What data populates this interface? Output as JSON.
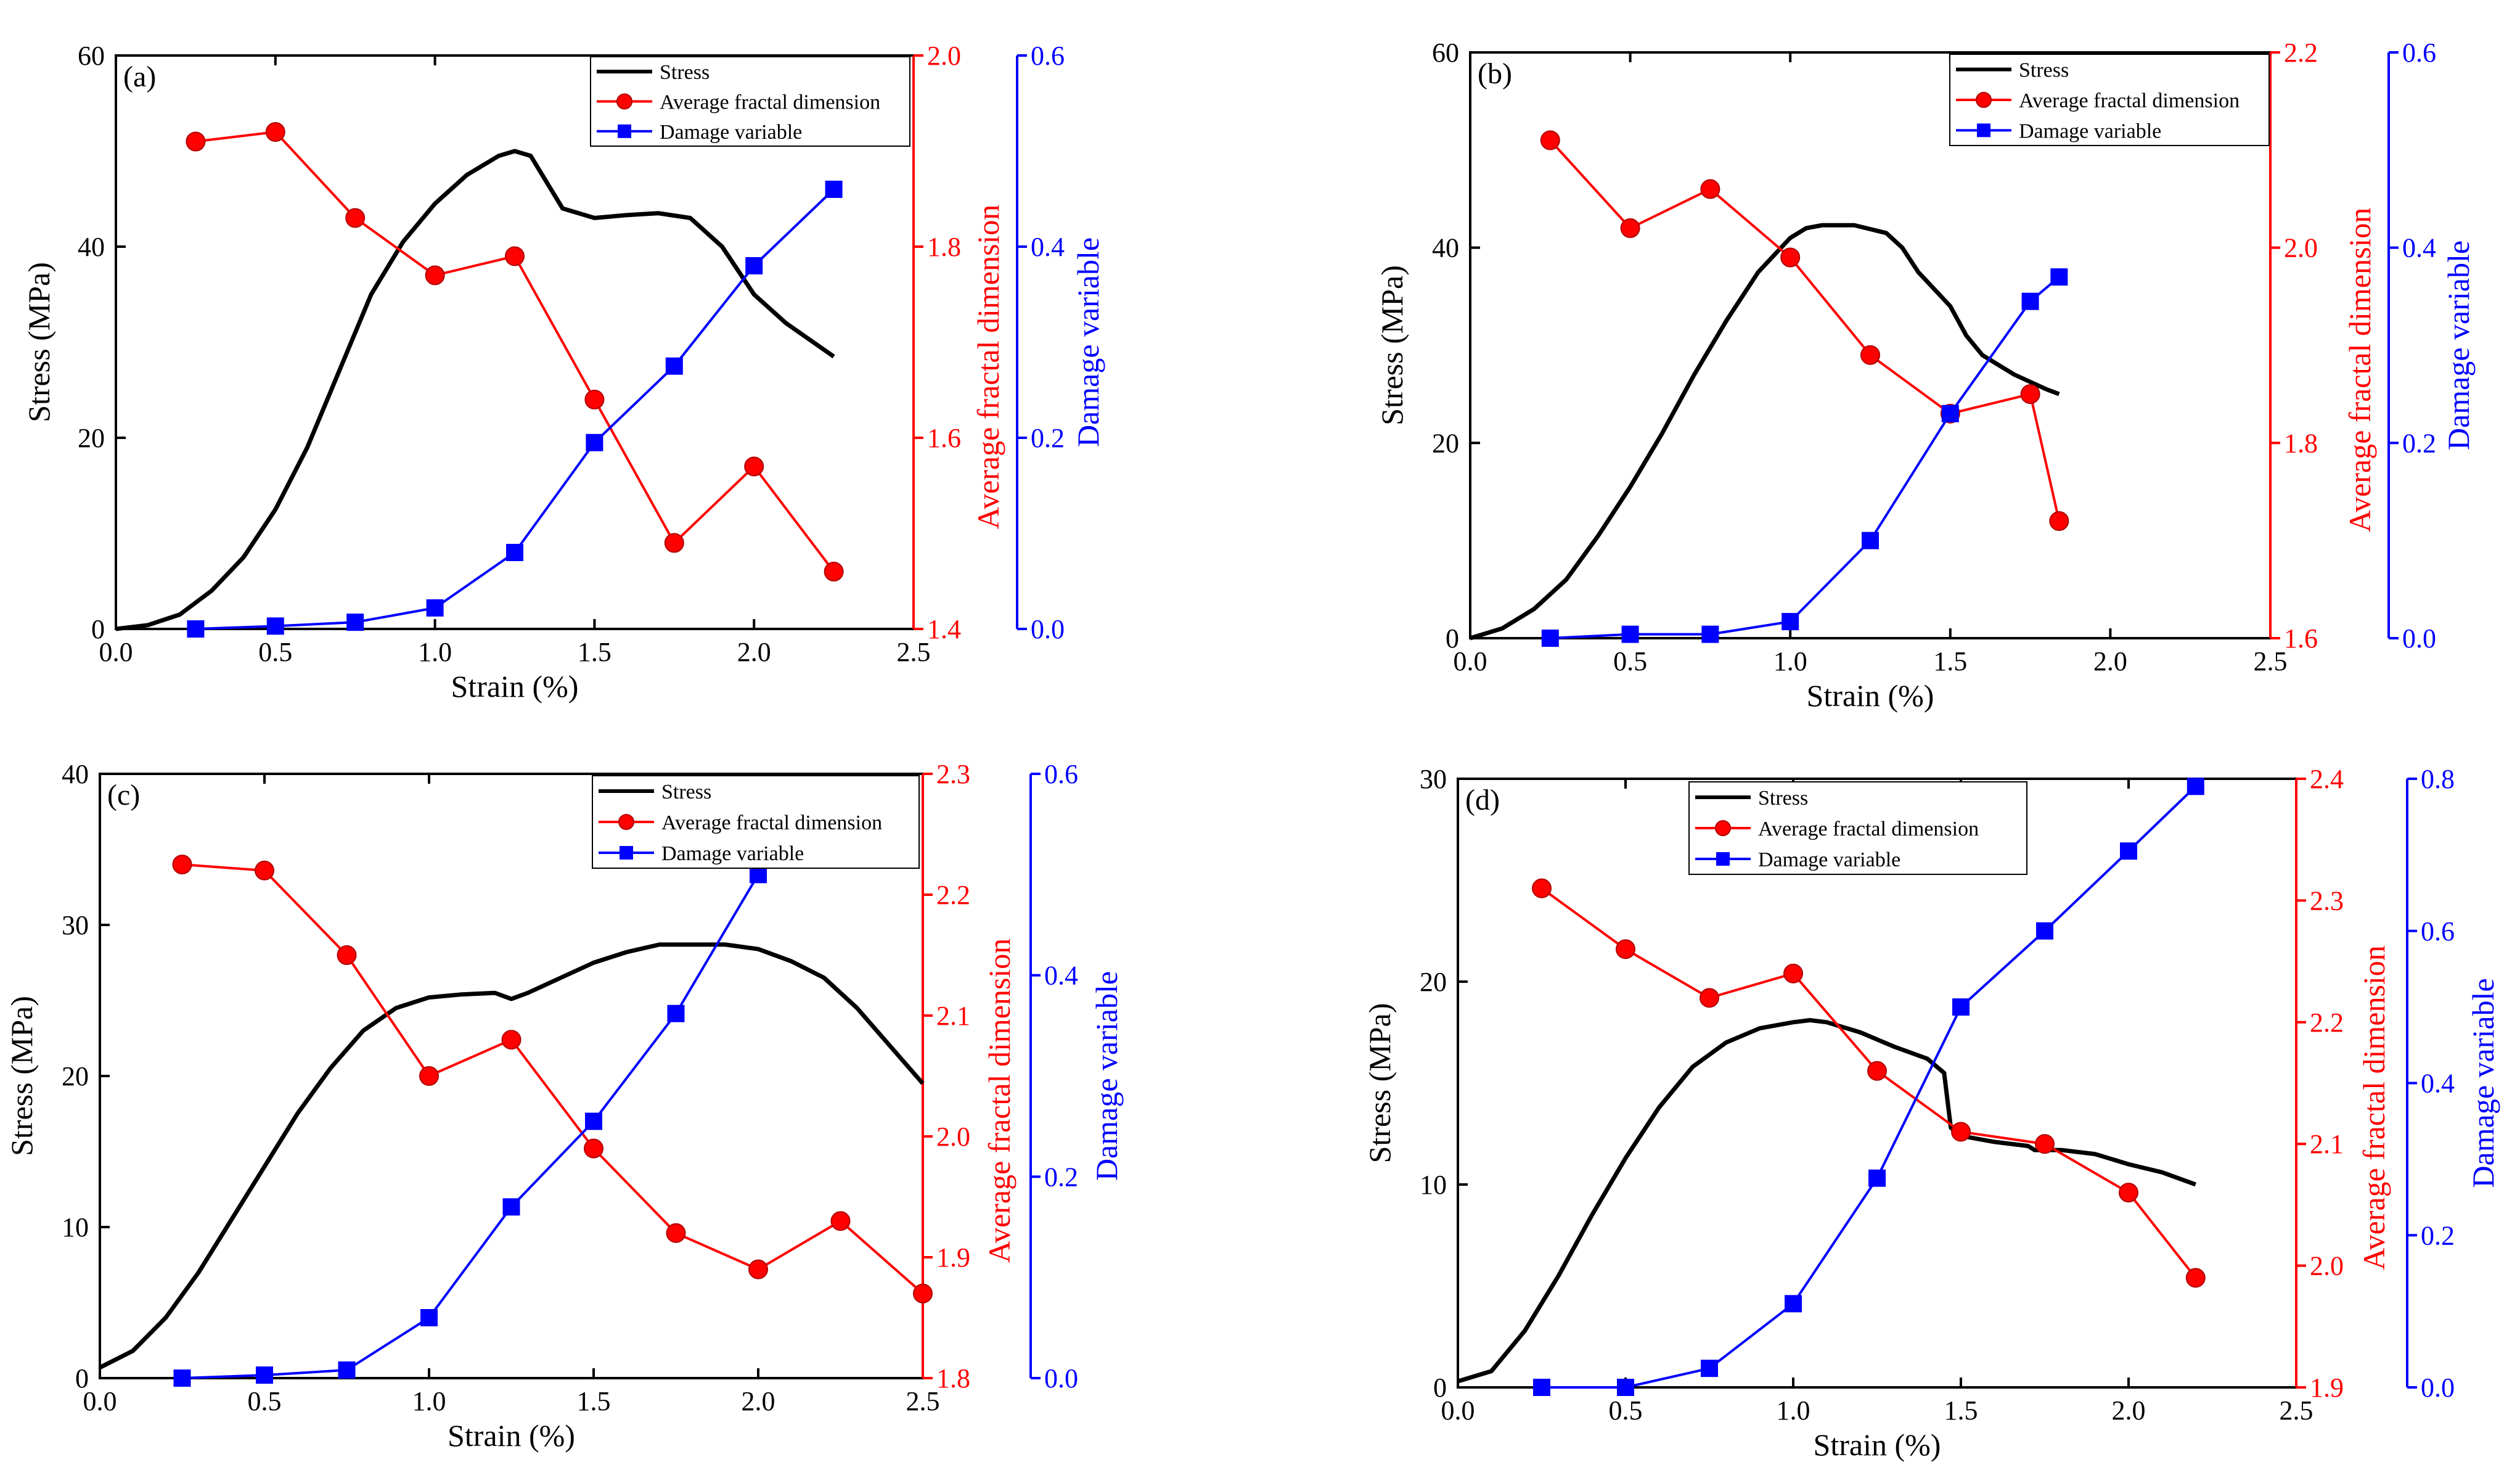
{
  "colors": {
    "stress": "#000000",
    "fractal": "#ff0000",
    "damage": "#0000ff",
    "marker_fractal_fill": "#ff0000",
    "marker_damage_fill": "#0000ff"
  },
  "legend_labels": {
    "stress": "Stress",
    "fractal": "Average fractal dimension",
    "damage": "Damage variable"
  },
  "axis_labels": {
    "x": "Strain (%)",
    "y_left": "Stress (MPa)",
    "y_mid": "Average fractal dimension",
    "y_right": "Damage variable"
  },
  "chart_data": [
    {
      "type": "line",
      "panel": "(a)",
      "legend_position": "top-right",
      "xlabel": "Strain (%)",
      "xlim": [
        0,
        2.5
      ],
      "xticks": [
        0,
        0.5,
        1,
        1.5,
        2,
        2.5
      ],
      "xtick_labels": [
        "0.0",
        "0.5",
        "1.0",
        "1.5",
        "2.0",
        "2.5"
      ],
      "stress": {
        "ylabel": "Stress (MPa)",
        "ylim": [
          0,
          60
        ],
        "yticks": [
          0,
          20,
          40,
          60
        ],
        "ytick_labels": [
          "0",
          "20",
          "40",
          "60"
        ],
        "x": [
          0,
          0.1,
          0.2,
          0.3,
          0.4,
          0.5,
          0.6,
          0.7,
          0.8,
          0.9,
          1.0,
          1.1,
          1.2,
          1.25,
          1.3,
          1.4,
          1.5,
          1.6,
          1.7,
          1.8,
          1.9,
          2.0,
          2.1,
          2.25
        ],
        "y": [
          0,
          0.4,
          1.5,
          4,
          7.5,
          12.5,
          19,
          27,
          35,
          40.5,
          44.5,
          47.5,
          49.5,
          50,
          49.5,
          44,
          43,
          43.3,
          43.5,
          43,
          40,
          35,
          32,
          28.5
        ]
      },
      "fractal": {
        "ylabel": "Average fractal dimension",
        "ylim": [
          1.4,
          2.0
        ],
        "yticks": [
          1.4,
          1.6,
          1.8,
          2.0
        ],
        "ytick_labels": [
          "1.4",
          "1.6",
          "1.8",
          "2.0"
        ],
        "x": [
          0.25,
          0.5,
          0.75,
          1.0,
          1.25,
          1.5,
          1.75,
          2.0,
          2.25
        ],
        "y": [
          1.91,
          1.92,
          1.83,
          1.77,
          1.79,
          1.64,
          1.49,
          1.57,
          1.46
        ]
      },
      "damage": {
        "ylabel": "Damage variable",
        "ylim": [
          0,
          0.6
        ],
        "yticks": [
          0,
          0.2,
          0.4,
          0.6
        ],
        "ytick_labels": [
          "0.0",
          "0.2",
          "0.4",
          "0.6"
        ],
        "x": [
          0.25,
          0.5,
          0.75,
          1.0,
          1.25,
          1.5,
          1.75,
          2.0,
          2.25
        ],
        "y": [
          0.0,
          0.003,
          0.007,
          0.022,
          0.08,
          0.195,
          0.275,
          0.38,
          0.46
        ]
      }
    },
    {
      "type": "line",
      "panel": "(b)",
      "legend_position": "top-right",
      "xlabel": "Strain (%)",
      "xlim": [
        0,
        2.5
      ],
      "xticks": [
        0,
        0.5,
        1,
        1.5,
        2,
        2.5
      ],
      "xtick_labels": [
        "0.0",
        "0.5",
        "1.0",
        "1.5",
        "2.0",
        "2.5"
      ],
      "stress": {
        "ylabel": "Stress (MPa)",
        "ylim": [
          0,
          60
        ],
        "yticks": [
          0,
          20,
          40,
          60
        ],
        "ytick_labels": [
          "0",
          "20",
          "40",
          "60"
        ],
        "x": [
          0,
          0.1,
          0.2,
          0.3,
          0.4,
          0.5,
          0.6,
          0.7,
          0.8,
          0.9,
          1.0,
          1.05,
          1.1,
          1.2,
          1.3,
          1.35,
          1.4,
          1.5,
          1.55,
          1.6,
          1.7,
          1.8,
          1.84
        ],
        "y": [
          0,
          1,
          3,
          6,
          10.5,
          15.5,
          21,
          27,
          32.5,
          37.5,
          41,
          42,
          42.3,
          42.3,
          41.5,
          40,
          37.5,
          34,
          31,
          29,
          27,
          25.5,
          25
        ]
      },
      "fractal": {
        "ylabel": "Average fractal dimension",
        "ylim": [
          1.6,
          2.2
        ],
        "yticks": [
          1.6,
          1.8,
          2.0,
          2.2
        ],
        "ytick_labels": [
          "1.6",
          "1.8",
          "2.0",
          "2.2"
        ],
        "x": [
          0.25,
          0.5,
          0.75,
          1.0,
          1.25,
          1.5,
          1.75,
          1.84
        ],
        "y": [
          2.11,
          2.02,
          2.06,
          1.99,
          1.89,
          1.83,
          1.85,
          1.72
        ]
      },
      "damage": {
        "ylabel": "Damage variable",
        "ylim": [
          0,
          0.6
        ],
        "yticks": [
          0,
          0.2,
          0.4,
          0.6
        ],
        "ytick_labels": [
          "0.0",
          "0.2",
          "0.4",
          "0.6"
        ],
        "x": [
          0.25,
          0.5,
          0.75,
          1.0,
          1.25,
          1.5,
          1.75,
          1.84
        ],
        "y": [
          0.0,
          0.004,
          0.004,
          0.017,
          0.1,
          0.23,
          0.345,
          0.37
        ]
      }
    },
    {
      "type": "line",
      "panel": "(c)",
      "legend_position": "top-right",
      "xlabel": "Strain (%)",
      "xlim": [
        0,
        2.5
      ],
      "xticks": [
        0,
        0.5,
        1,
        1.5,
        2,
        2.5
      ],
      "xtick_labels": [
        "0.0",
        "0.5",
        "1.0",
        "1.5",
        "2.0",
        "2.5"
      ],
      "stress": {
        "ylabel": "Stress (MPa)",
        "ylim": [
          0,
          40
        ],
        "yticks": [
          0,
          10,
          20,
          30,
          40
        ],
        "ytick_labels": [
          "0",
          "10",
          "20",
          "30",
          "40"
        ],
        "x": [
          0,
          0.1,
          0.2,
          0.3,
          0.4,
          0.5,
          0.6,
          0.7,
          0.8,
          0.9,
          1.0,
          1.1,
          1.2,
          1.25,
          1.3,
          1.4,
          1.5,
          1.6,
          1.7,
          1.8,
          1.9,
          2.0,
          2.1,
          2.2,
          2.3,
          2.4,
          2.5
        ],
        "y": [
          0.7,
          1.8,
          4,
          7,
          10.5,
          14,
          17.5,
          20.5,
          23,
          24.5,
          25.2,
          25.4,
          25.5,
          25.1,
          25.5,
          26.5,
          27.5,
          28.2,
          28.7,
          28.7,
          28.7,
          28.4,
          27.6,
          26.5,
          24.5,
          22,
          19.5
        ]
      },
      "fractal": {
        "ylabel": "Average fractal dimension",
        "ylim": [
          1.8,
          2.3
        ],
        "yticks": [
          1.8,
          1.9,
          2.0,
          2.1,
          2.2,
          2.3
        ],
        "ytick_labels": [
          "1.8",
          "1.9",
          "2.0",
          "2.1",
          "2.2",
          "2.3"
        ],
        "x": [
          0.25,
          0.5,
          0.75,
          1.0,
          1.25,
          1.5,
          1.75,
          2.0,
          2.25,
          2.5
        ],
        "y": [
          2.225,
          2.22,
          2.15,
          2.05,
          2.08,
          1.99,
          1.92,
          1.89,
          1.93,
          1.87
        ]
      },
      "damage": {
        "ylabel": "Damage variable",
        "ylim": [
          0,
          0.6
        ],
        "yticks": [
          0,
          0.2,
          0.4,
          0.6
        ],
        "ytick_labels": [
          "0.0",
          "0.2",
          "0.4",
          "0.6"
        ],
        "x": [
          0.25,
          0.5,
          0.75,
          1.0,
          1.25,
          1.5,
          1.75,
          2.0
        ],
        "y": [
          0.0,
          0.003,
          0.008,
          0.06,
          0.17,
          0.255,
          0.362,
          0.5
        ]
      }
    },
    {
      "type": "line",
      "panel": "(d)",
      "legend_position": "top-left",
      "xlabel": "Strain (%)",
      "xlim": [
        0,
        2.5
      ],
      "xticks": [
        0,
        0.5,
        1,
        1.5,
        2,
        2.5
      ],
      "xtick_labels": [
        "0.0",
        "0.5",
        "1.0",
        "1.5",
        "2.0",
        "2.5"
      ],
      "stress": {
        "ylabel": "Stress (MPa)",
        "ylim": [
          0,
          30
        ],
        "yticks": [
          0,
          10,
          20,
          30
        ],
        "ytick_labels": [
          "0",
          "10",
          "20",
          "30"
        ],
        "x": [
          0,
          0.1,
          0.2,
          0.3,
          0.4,
          0.5,
          0.6,
          0.7,
          0.8,
          0.9,
          1.0,
          1.05,
          1.1,
          1.2,
          1.3,
          1.4,
          1.45,
          1.47,
          1.5,
          1.6,
          1.7,
          1.72,
          1.8,
          1.9,
          2.0,
          2.1,
          2.2
        ],
        "y": [
          0.3,
          0.8,
          2.8,
          5.5,
          8.5,
          11.3,
          13.8,
          15.8,
          17,
          17.7,
          18,
          18.1,
          18,
          17.5,
          16.8,
          16.2,
          15.5,
          12.8,
          12.4,
          12.1,
          11.9,
          11.7,
          11.7,
          11.5,
          11.0,
          10.6,
          10.0
        ]
      },
      "fractal": {
        "ylabel": "Average fractal dimension",
        "ylim": [
          1.9,
          2.4
        ],
        "yticks": [
          1.9,
          2.0,
          2.1,
          2.2,
          2.3,
          2.4
        ],
        "ytick_labels": [
          "1.9",
          "2.0",
          "2.1",
          "2.2",
          "2.3",
          "2.4"
        ],
        "x": [
          0.25,
          0.5,
          0.75,
          1.0,
          1.25,
          1.5,
          1.75,
          2.0,
          2.2
        ],
        "y": [
          2.31,
          2.26,
          2.22,
          2.24,
          2.16,
          2.11,
          2.1,
          2.06,
          1.99
        ]
      },
      "damage": {
        "ylabel": "Damage variable",
        "ylim": [
          0,
          0.8
        ],
        "yticks": [
          0,
          0.2,
          0.4,
          0.6,
          0.8
        ],
        "ytick_labels": [
          "0.0",
          "0.2",
          "0.4",
          "0.6",
          "0.8"
        ],
        "x": [
          0.25,
          0.5,
          0.75,
          1.0,
          1.25,
          1.5,
          1.75,
          2.0,
          2.2
        ],
        "y": [
          0.0,
          0.0,
          0.025,
          0.11,
          0.275,
          0.5,
          0.6,
          0.705,
          0.79
        ]
      }
    }
  ]
}
